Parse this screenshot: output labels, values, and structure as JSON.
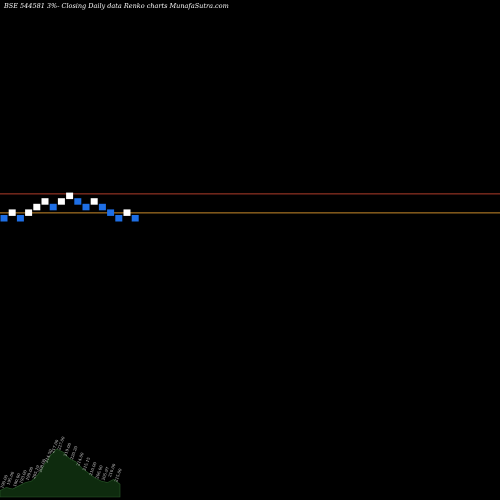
{
  "title": "BSE 544581 3%-  Closing Daily data  Renko  charts MunafaSutra.com",
  "colors": {
    "background": "#000000",
    "up_brick": "#ffffff",
    "down_brick": "#1e6fe6",
    "upper_line": "#b03c2a",
    "lower_line": "#c98a2a",
    "volume_fill": "#0e2b0e",
    "volume_stroke": "#2a5a2a"
  },
  "chart_data": {
    "type": "renko",
    "bricks": [
      {
        "dir": "down",
        "level": 0
      },
      {
        "dir": "up",
        "level": 1
      },
      {
        "dir": "down",
        "level": 0
      },
      {
        "dir": "up",
        "level": 1
      },
      {
        "dir": "up",
        "level": 2
      },
      {
        "dir": "up",
        "level": 3
      },
      {
        "dir": "down",
        "level": 2
      },
      {
        "dir": "up",
        "level": 3
      },
      {
        "dir": "up",
        "level": 4
      },
      {
        "dir": "down",
        "level": 3
      },
      {
        "dir": "down",
        "level": 2
      },
      {
        "dir": "up",
        "level": 3
      },
      {
        "dir": "down",
        "level": 2
      },
      {
        "dir": "down",
        "level": 1
      },
      {
        "dir": "down",
        "level": 0
      },
      {
        "dir": "up",
        "level": 1
      },
      {
        "dir": "down",
        "level": 0
      }
    ],
    "reference_lines": {
      "upper_level": 4.4,
      "lower_level": 1.0
    },
    "volume_labels": [
      "190.00",
      "195.00",
      "190.00",
      "193.00",
      "199.00",
      "205.19",
      "208.00",
      "214.50",
      "217.00",
      "227.00",
      "219.00",
      "220.20",
      "214.00",
      "215.15",
      "210.00",
      "206.00",
      "205.97",
      "210.00",
      "215.00"
    ],
    "volume": [
      4,
      6,
      5,
      7,
      9,
      10,
      14,
      20,
      26,
      30,
      28,
      24,
      22,
      18,
      15,
      12,
      10,
      9,
      11,
      8
    ]
  }
}
